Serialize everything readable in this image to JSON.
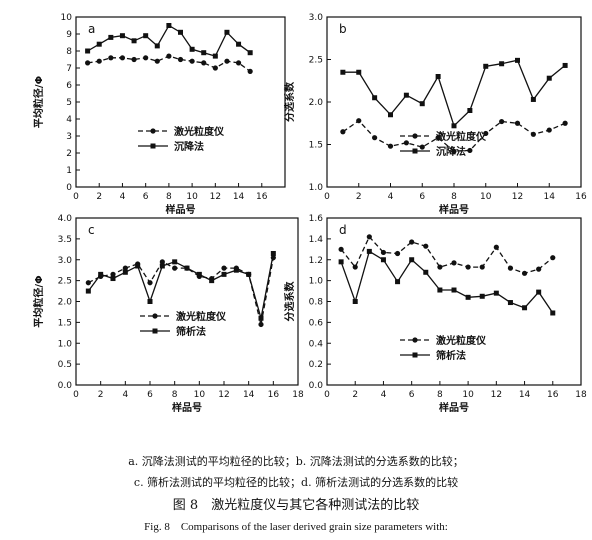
{
  "chart_data": [
    {
      "panel": "a",
      "type": "line",
      "ylabel": "平均粒径/Φ",
      "xlabel": "样品号",
      "xlim": [
        0,
        18
      ],
      "ylim": [
        0,
        10
      ],
      "xticks": [
        "0",
        "2",
        "4",
        "6",
        "8",
        "10",
        "12",
        "14",
        "16"
      ],
      "yticks": [
        "0",
        "1",
        "2",
        "3",
        "4",
        "5",
        "6",
        "7",
        "8",
        "9",
        "10"
      ],
      "legend_position": "center-left",
      "x": [
        1,
        2,
        3,
        4,
        5,
        6,
        7,
        8,
        9,
        10,
        11,
        12,
        13,
        14,
        15
      ],
      "series": [
        {
          "name": "激光粒度仪",
          "values": [
            7.3,
            7.4,
            7.6,
            7.6,
            7.5,
            7.6,
            7.4,
            7.7,
            7.5,
            7.4,
            7.3,
            7.0,
            7.4,
            7.3,
            6.8
          ]
        },
        {
          "name": "沉降法",
          "values": [
            8.0,
            8.4,
            8.8,
            8.9,
            8.6,
            8.9,
            8.3,
            9.5,
            9.1,
            8.1,
            7.9,
            7.7,
            9.1,
            8.4,
            7.9
          ]
        }
      ]
    },
    {
      "panel": "b",
      "type": "line",
      "ylabel": "分选系数",
      "xlabel": "样品号",
      "xlim": [
        0,
        16
      ],
      "ylim": [
        1.0,
        3.0
      ],
      "xticks": [
        "0",
        "2",
        "4",
        "6",
        "8",
        "10",
        "12",
        "14",
        "16"
      ],
      "yticks": [
        "1.0",
        "1.5",
        "2.0",
        "2.5",
        "3.0"
      ],
      "legend_position": "center-right",
      "x": [
        1,
        2,
        3,
        4,
        5,
        6,
        7,
        8,
        9,
        10,
        11,
        12,
        13,
        14,
        15
      ],
      "series": [
        {
          "name": "激光粒度仪",
          "values": [
            1.65,
            1.78,
            1.58,
            1.48,
            1.52,
            1.47,
            1.58,
            1.42,
            1.43,
            1.63,
            1.77,
            1.75,
            1.62,
            1.67,
            1.75
          ]
        },
        {
          "name": "沉降法",
          "values": [
            2.35,
            2.35,
            2.05,
            1.85,
            2.08,
            1.98,
            2.3,
            1.72,
            1.9,
            2.42,
            2.45,
            2.49,
            2.03,
            2.28,
            2.43
          ]
        }
      ]
    },
    {
      "panel": "c",
      "type": "line",
      "ylabel": "平均粒径/Φ",
      "xlabel": "样品号",
      "xlim": [
        0,
        18
      ],
      "ylim": [
        0.0,
        4.0
      ],
      "xticks": [
        "0",
        "2",
        "4",
        "6",
        "8",
        "10",
        "12",
        "14",
        "16",
        "18"
      ],
      "yticks": [
        "0.0",
        "0.5",
        "1.0",
        "1.5",
        "2.0",
        "2.5",
        "3.0",
        "3.5",
        "4.0"
      ],
      "legend_position": "center-right",
      "x": [
        1,
        2,
        3,
        4,
        5,
        6,
        7,
        8,
        9,
        10,
        11,
        12,
        13,
        14,
        15,
        16
      ],
      "series": [
        {
          "name": "激光粒度仪",
          "values": [
            2.45,
            2.6,
            2.65,
            2.8,
            2.9,
            2.45,
            2.95,
            2.8,
            2.8,
            2.6,
            2.55,
            2.8,
            2.8,
            2.65,
            1.45,
            3.05
          ]
        },
        {
          "name": "筛析法",
          "values": [
            2.25,
            2.65,
            2.55,
            2.7,
            2.85,
            2.0,
            2.85,
            2.95,
            2.8,
            2.65,
            2.5,
            2.65,
            2.75,
            2.65,
            1.6,
            3.15
          ]
        }
      ]
    },
    {
      "panel": "d",
      "type": "line",
      "ylabel": "分选系数",
      "xlabel": "样品号",
      "xlim": [
        0,
        18
      ],
      "ylim": [
        0.0,
        1.6
      ],
      "xticks": [
        "0",
        "2",
        "4",
        "6",
        "8",
        "10",
        "12",
        "14",
        "16",
        "18"
      ],
      "yticks": [
        "0.0",
        "0.2",
        "0.4",
        "0.6",
        "0.8",
        "1.0",
        "1.2",
        "1.4",
        "1.6"
      ],
      "legend_position": "center-right",
      "x": [
        1,
        2,
        3,
        4,
        5,
        6,
        7,
        8,
        9,
        10,
        11,
        12,
        13,
        14,
        15,
        16
      ],
      "series": [
        {
          "name": "激光粒度仪",
          "values": [
            1.3,
            1.13,
            1.42,
            1.27,
            1.26,
            1.37,
            1.33,
            1.13,
            1.17,
            1.13,
            1.13,
            1.32,
            1.12,
            1.07,
            1.11,
            1.22
          ]
        },
        {
          "name": "筛析法",
          "values": [
            1.18,
            0.8,
            1.28,
            1.2,
            0.99,
            1.2,
            1.08,
            0.91,
            0.91,
            0.84,
            0.85,
            0.88,
            0.79,
            0.74,
            0.89,
            0.69
          ]
        }
      ]
    }
  ],
  "caption": {
    "line1": "a. 沉降法测试的平均粒径的比较；b. 沉降法测试的分选系数的比较；",
    "line2": "c. 筛析法测试的平均粒径的比较；d. 筛析法测试的分选系数的比较",
    "title": "图 8　激光粒度仪与其它各种测试法的比较",
    "english": "Fig. 8　Comparisons of the laser derived grain size parameters with:"
  }
}
